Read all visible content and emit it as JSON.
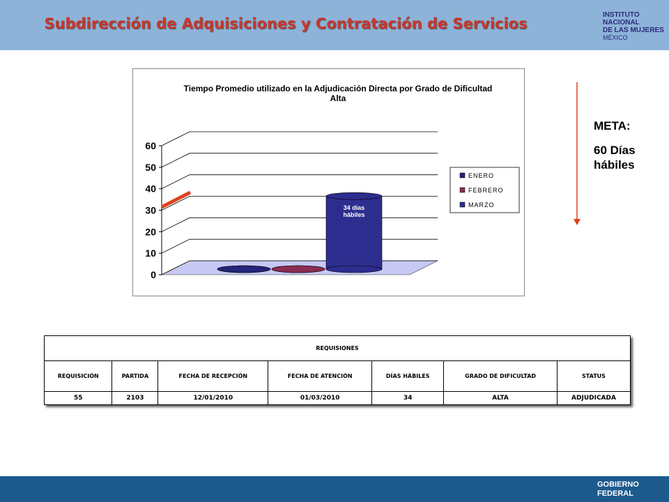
{
  "header": {
    "title": "Subdirección de Adquisiciones y Contratación de Servicios",
    "logo": [
      "INSTITUTO NACIONAL",
      "DE LAS MUJERES",
      "MÉXICO"
    ]
  },
  "chart_data": {
    "type": "bar3d",
    "title": "Tiempo Promedio utilizado en la Adjudicación Directa por Grado de Dificultad Alta",
    "categories": [
      null
    ],
    "series": [
      {
        "name": "ENERO",
        "color": "#24247a",
        "values": [
          0
        ]
      },
      {
        "name": "FEBRERO",
        "color": "#8a2c52",
        "values": [
          0
        ]
      },
      {
        "name": "MARZO",
        "color": "#2d2d8f",
        "values": [
          34
        ],
        "value_labels": [
          "34 días hábiles"
        ]
      }
    ],
    "ylim": [
      0,
      60
    ],
    "yticks": [
      0,
      10,
      20,
      30,
      40,
      50,
      60
    ],
    "grid": true,
    "legend": "right"
  },
  "meta": {
    "label": "META:",
    "value": "60 Días hábiles"
  },
  "table": {
    "title": "REQUISIONES",
    "headers": [
      "REQUISICIÓN",
      "PARTIDA",
      "FECHA DE RECEPCIÓN",
      "FECHA DE ATENCIÓN",
      "DÍAS HÁBILES",
      "GRADO DE DIFICULTAD",
      "STATUS"
    ],
    "rows": [
      [
        "55",
        "2103",
        "12/01/2010",
        "01/03/2010",
        "34",
        "ALTA",
        "ADJUDICADA"
      ]
    ]
  },
  "footer": {
    "brand": "GOBIERNO FEDERAL"
  }
}
